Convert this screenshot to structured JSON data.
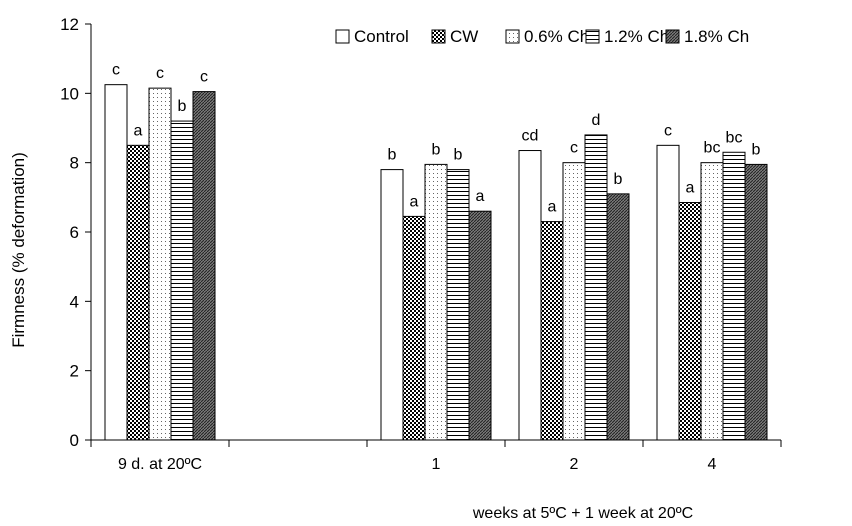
{
  "chart_data": {
    "type": "bar",
    "title": "",
    "ylabel": "Firmness (% deformation)",
    "xlabel": "weeks at 5ºC + 1 week at 20ºC",
    "ylim": [
      0,
      12
    ],
    "yticks": [
      0,
      2,
      4,
      6,
      8,
      10,
      12
    ],
    "categories": [
      "9 d. at 20ºC",
      "",
      "1",
      "2",
      "4"
    ],
    "legend_position": "top-right",
    "series": [
      {
        "name": "Control",
        "pattern": "none",
        "values": [
          10.25,
          null,
          7.8,
          8.35,
          8.5
        ],
        "labels": [
          "c",
          "",
          "b",
          "cd",
          "c"
        ]
      },
      {
        "name": "CW",
        "pattern": "dots-dense",
        "values": [
          8.5,
          null,
          6.45,
          6.3,
          6.85
        ],
        "labels": [
          "a",
          "",
          "a",
          "a",
          "a"
        ]
      },
      {
        "name": "0.6% Ch",
        "pattern": "dots-sparse",
        "values": [
          10.15,
          null,
          7.95,
          8.0,
          8.0
        ],
        "labels": [
          "c",
          "",
          "b",
          "c",
          "bc"
        ]
      },
      {
        "name": "1.2% Ch",
        "pattern": "hlines",
        "values": [
          9.2,
          null,
          7.8,
          8.8,
          8.3
        ],
        "labels": [
          "b",
          "",
          "b",
          "d",
          "bc"
        ]
      },
      {
        "name": "1.8% Ch",
        "pattern": "diag-dense",
        "values": [
          10.05,
          null,
          6.6,
          7.1,
          7.95
        ],
        "labels": [
          "c",
          "",
          "a",
          "b",
          "b"
        ]
      }
    ]
  }
}
